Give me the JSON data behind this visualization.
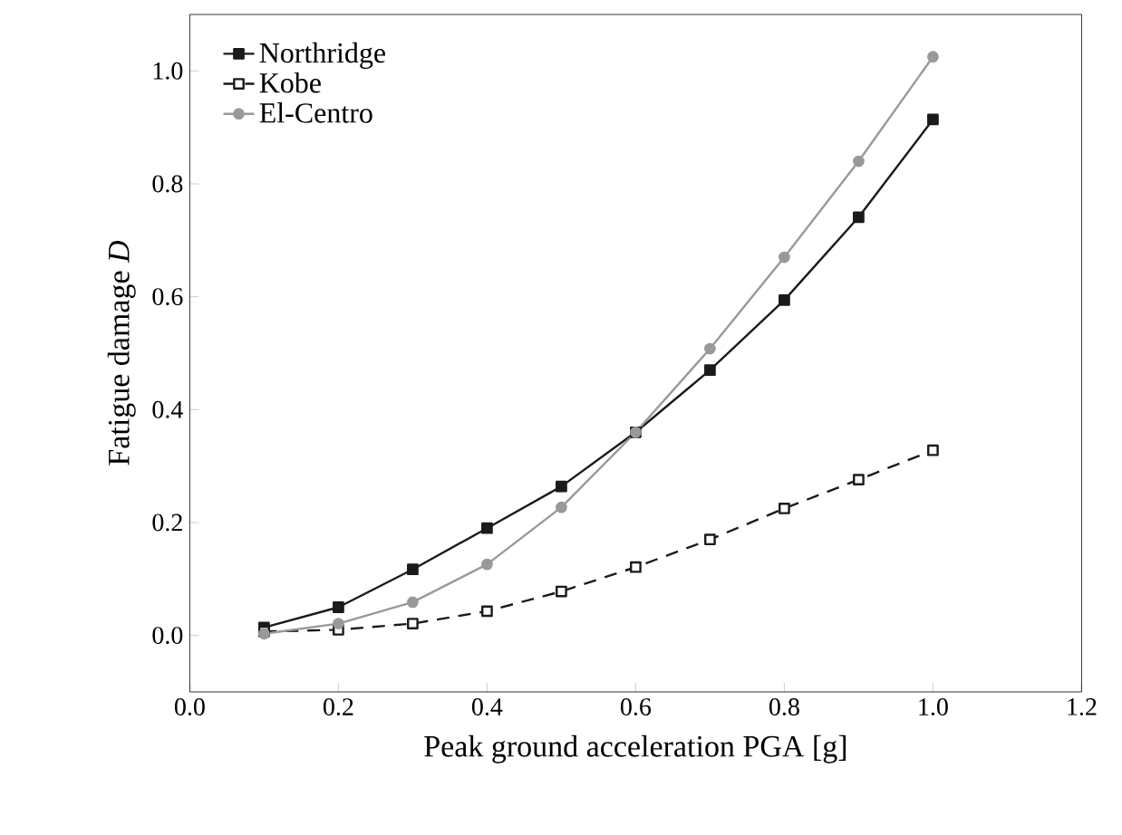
{
  "chart_data": {
    "type": "line",
    "xlabel": "Peak ground acceleration PGA [g]",
    "ylabel": "Fatigue damage *D*",
    "x": [
      0.1,
      0.2,
      0.3,
      0.4,
      0.5,
      0.6,
      0.7,
      0.8,
      0.9,
      1.0
    ],
    "series": [
      {
        "name": "Northridge",
        "color": "#1a1a1a",
        "marker": "square",
        "line_style": "solid",
        "values": [
          0.014,
          0.05,
          0.117,
          0.19,
          0.264,
          0.36,
          0.47,
          0.594,
          0.741,
          0.914
        ]
      },
      {
        "name": "Kobe",
        "color": "#1a1a1a",
        "marker": "square",
        "line_style": "dashed",
        "values": [
          0.007,
          0.01,
          0.021,
          0.043,
          0.078,
          0.121,
          0.17,
          0.225,
          0.276,
          0.328
        ]
      },
      {
        "name": "El-Centro",
        "color": "#999999",
        "marker": "circle",
        "line_style": "solid",
        "values": [
          0.003,
          0.021,
          0.059,
          0.126,
          0.227,
          0.36,
          0.508,
          0.67,
          0.84,
          1.025
        ]
      }
    ],
    "xlim": [
      0.0,
      1.2
    ],
    "ylim": [
      -0.1,
      1.1
    ],
    "xticks": [
      {
        "value": 0.0,
        "label": "0.0"
      },
      0.2,
      0.4,
      0.6,
      0.8,
      {
        "value": 1.0,
        "label": "1.0"
      },
      1.2
    ],
    "yticks": [
      {
        "value": 0.0,
        "label": "0.0"
      },
      0.2,
      0.4,
      0.6,
      0.8,
      {
        "value": 1.0,
        "label": "1.0"
      }
    ],
    "grid": false,
    "legend": "top left"
  }
}
